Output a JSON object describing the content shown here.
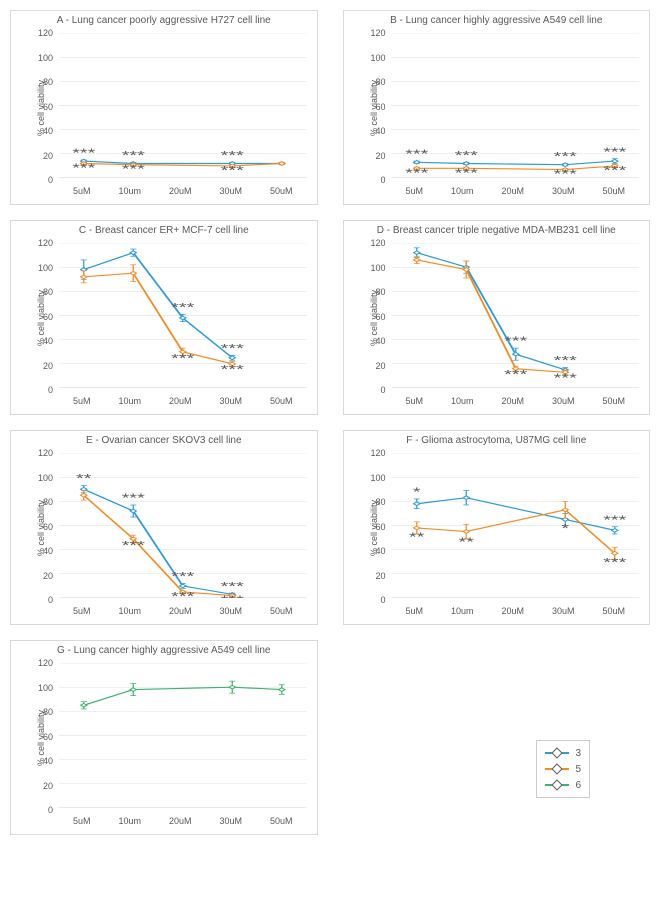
{
  "ylabel": "% cell viability",
  "xcategories": [
    "5uM",
    "10um",
    "20uM",
    "30uM",
    "50uM"
  ],
  "ylim": [
    0,
    120
  ],
  "ytick_step": 20,
  "grid_color": "#d9d9d9",
  "axis_color": "#bfbfbf",
  "text_color": "#595959",
  "background_color": "#ffffff",
  "series_colors": {
    "3": "#2e9bd6",
    "5": "#f28c28",
    "6": "#3cb371"
  },
  "legend": {
    "items": [
      {
        "key": "3",
        "label": "3",
        "color": "#2e9bd6"
      },
      {
        "key": "5",
        "label": "5",
        "color": "#f28c28"
      },
      {
        "key": "6",
        "label": "6",
        "color": "#3cb371"
      }
    ]
  },
  "panels": [
    {
      "id": "A",
      "title": "A - Lung cancer poorly aggressive H727 cell line",
      "series": [
        {
          "key": "3",
          "points": [
            {
              "x": 0,
              "y": 14,
              "err": 1,
              "sig": "***",
              "sigpos": "above"
            },
            {
              "x": 1,
              "y": 12,
              "err": 1,
              "sig": "***",
              "sigpos": "above"
            },
            {
              "x": 3,
              "y": 12,
              "err": 1,
              "sig": "***",
              "sigpos": "above"
            },
            {
              "x": 4,
              "y": 12,
              "err": 1
            }
          ]
        },
        {
          "key": "5",
          "points": [
            {
              "x": 0,
              "y": 12,
              "err": 1,
              "sig": "***",
              "sigpos": "below"
            },
            {
              "x": 1,
              "y": 11,
              "err": 1,
              "sig": "***",
              "sigpos": "below"
            },
            {
              "x": 3,
              "y": 10,
              "err": 1,
              "sig": "***",
              "sigpos": "below"
            },
            {
              "x": 4,
              "y": 12,
              "err": 1
            }
          ]
        }
      ]
    },
    {
      "id": "B",
      "title": "B - Lung cancer highly aggressive A549 cell line",
      "series": [
        {
          "key": "3",
          "points": [
            {
              "x": 0,
              "y": 13,
              "err": 1,
              "sig": "***",
              "sigpos": "above"
            },
            {
              "x": 1,
              "y": 12,
              "err": 1,
              "sig": "***",
              "sigpos": "above"
            },
            {
              "x": 3,
              "y": 11,
              "err": 1,
              "sig": "***",
              "sigpos": "above"
            },
            {
              "x": 4,
              "y": 14,
              "err": 2,
              "sig": "***",
              "sigpos": "above"
            }
          ]
        },
        {
          "key": "5",
          "points": [
            {
              "x": 0,
              "y": 8,
              "err": 1,
              "sig": "***",
              "sigpos": "below"
            },
            {
              "x": 1,
              "y": 8,
              "err": 1,
              "sig": "***",
              "sigpos": "below"
            },
            {
              "x": 3,
              "y": 7,
              "err": 1,
              "sig": "***",
              "sigpos": "below"
            },
            {
              "x": 4,
              "y": 10,
              "err": 1,
              "sig": "***",
              "sigpos": "below"
            }
          ]
        }
      ]
    },
    {
      "id": "C",
      "title": "C - Breast cancer ER+ MCF-7 cell line",
      "series": [
        {
          "key": "3",
          "points": [
            {
              "x": 0,
              "y": 98,
              "err": 8
            },
            {
              "x": 1,
              "y": 112,
              "err": 3
            },
            {
              "x": 2,
              "y": 58,
              "err": 3,
              "sig": "***",
              "sigpos": "above"
            },
            {
              "x": 3,
              "y": 25,
              "err": 2,
              "sig": "***",
              "sigpos": "above"
            }
          ]
        },
        {
          "key": "5",
          "points": [
            {
              "x": 0,
              "y": 92,
              "err": 5
            },
            {
              "x": 1,
              "y": 95,
              "err": 7
            },
            {
              "x": 2,
              "y": 30,
              "err": 3,
              "sig": "***",
              "sigpos": "below"
            },
            {
              "x": 3,
              "y": 20,
              "err": 2,
              "sig": "***",
              "sigpos": "below"
            }
          ]
        }
      ]
    },
    {
      "id": "D",
      "title": "D - Breast cancer triple negative MDA-MB231 cell line",
      "series": [
        {
          "key": "3",
          "points": [
            {
              "x": 0,
              "y": 112,
              "err": 4
            },
            {
              "x": 1,
              "y": 100,
              "err": 5
            },
            {
              "x": 2,
              "y": 28,
              "err": 5,
              "sig": "***",
              "sigpos": "above"
            },
            {
              "x": 3,
              "y": 15,
              "err": 2,
              "sig": "***",
              "sigpos": "above"
            }
          ]
        },
        {
          "key": "5",
          "points": [
            {
              "x": 0,
              "y": 106,
              "err": 3
            },
            {
              "x": 1,
              "y": 98,
              "err": 7
            },
            {
              "x": 2,
              "y": 16,
              "err": 2,
              "sig": "***",
              "sigpos": "below"
            },
            {
              "x": 3,
              "y": 13,
              "err": 2,
              "sig": "***",
              "sigpos": "below"
            }
          ]
        }
      ]
    },
    {
      "id": "E",
      "title": "E - Ovarian cancer SKOV3 cell line",
      "series": [
        {
          "key": "3",
          "points": [
            {
              "x": 0,
              "y": 90,
              "err": 3,
              "sig": "**",
              "sigpos": "above"
            },
            {
              "x": 1,
              "y": 72,
              "err": 5,
              "sig": "***",
              "sigpos": "above"
            },
            {
              "x": 2,
              "y": 10,
              "err": 2,
              "sig": "***",
              "sigpos": "above"
            },
            {
              "x": 3,
              "y": 3,
              "err": 1,
              "sig": "***",
              "sigpos": "above"
            }
          ]
        },
        {
          "key": "5",
          "points": [
            {
              "x": 0,
              "y": 85,
              "err": 4
            },
            {
              "x": 1,
              "y": 49,
              "err": 3,
              "sig": "***",
              "sigpos": "below"
            },
            {
              "x": 2,
              "y": 5,
              "err": 1,
              "sig": "***",
              "sigpos": "below"
            },
            {
              "x": 3,
              "y": 2,
              "err": 1,
              "sig": "***",
              "sigpos": "below"
            }
          ]
        }
      ]
    },
    {
      "id": "F",
      "title": "F - Glioma astrocytoma, U87MG cell line",
      "series": [
        {
          "key": "3",
          "points": [
            {
              "x": 0,
              "y": 78,
              "err": 4,
              "sig": "*",
              "sigpos": "above"
            },
            {
              "x": 1,
              "y": 83,
              "err": 6
            },
            {
              "x": 3,
              "y": 65,
              "err": 5,
              "sig": "*",
              "sigpos": "below"
            },
            {
              "x": 4,
              "y": 56,
              "err": 3,
              "sig": "***",
              "sigpos": "above"
            }
          ]
        },
        {
          "key": "5",
          "points": [
            {
              "x": 0,
              "y": 58,
              "err": 5,
              "sig": "**",
              "sigpos": "below"
            },
            {
              "x": 1,
              "y": 55,
              "err": 6,
              "sig": "**",
              "sigpos": "below"
            },
            {
              "x": 3,
              "y": 73,
              "err": 7
            },
            {
              "x": 4,
              "y": 37,
              "err": 5,
              "sig": "***",
              "sigpos": "below"
            }
          ]
        }
      ]
    },
    {
      "id": "G",
      "title": "G - Lung cancer highly aggressive A549 cell line",
      "series": [
        {
          "key": "6",
          "points": [
            {
              "x": 0,
              "y": 85,
              "err": 3
            },
            {
              "x": 1,
              "y": 98,
              "err": 5
            },
            {
              "x": 3,
              "y": 100,
              "err": 5
            },
            {
              "x": 4,
              "y": 98,
              "err": 4
            }
          ]
        }
      ]
    }
  ]
}
